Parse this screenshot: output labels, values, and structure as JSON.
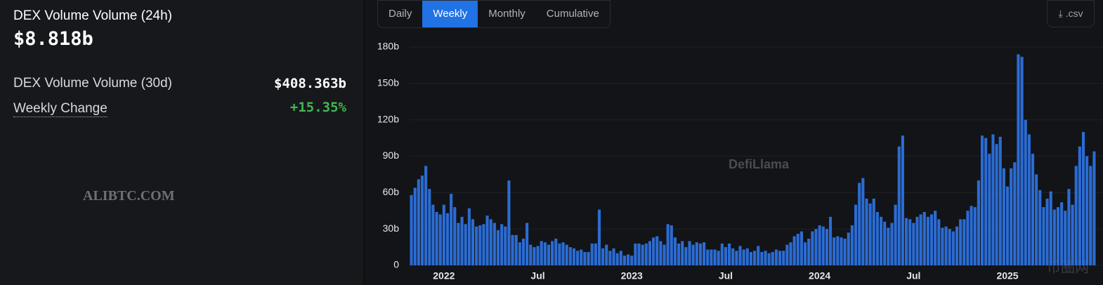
{
  "panel": {
    "title": "DEX Volume Volume (24h)",
    "value": "$8.818b",
    "rows": [
      {
        "label": "DEX Volume Volume (30d)",
        "value": "$408.363b"
      },
      {
        "label": "Weekly Change",
        "value": "+15.35%"
      }
    ],
    "watermark": "ALIBTC.COM"
  },
  "tabs": [
    "Daily",
    "Weekly",
    "Monthly",
    "Cumulative"
  ],
  "selected_tab": "Weekly",
  "csv_button": ".csv",
  "corner_logo": "币圈网",
  "chart_data": {
    "type": "bar",
    "watermark": "DefiLlama",
    "color": "#2b6cd4",
    "grid": true,
    "ylim": [
      0,
      180
    ],
    "yticks": [
      0,
      {
        "value": 30,
        "label": "30b"
      },
      {
        "value": 60,
        "label": "60b"
      },
      {
        "value": 90,
        "label": "90b"
      },
      {
        "value": 120,
        "label": "120b"
      },
      {
        "value": 150,
        "label": "150b"
      },
      {
        "value": 180,
        "label": "180b"
      }
    ],
    "categories": [
      null,
      null,
      null,
      null,
      null,
      null,
      null,
      null,
      null,
      "2022",
      null,
      null,
      null,
      null,
      null,
      null,
      null,
      null,
      null,
      null,
      null,
      null,
      null,
      null,
      null,
      null,
      null,
      null,
      null,
      null,
      null,
      null,
      null,
      null,
      null,
      "Jul",
      null,
      null,
      null,
      null,
      null,
      null,
      null,
      null,
      null,
      null,
      null,
      null,
      null,
      null,
      null,
      null,
      null,
      null,
      null,
      null,
      null,
      null,
      null,
      null,
      null,
      "2023",
      null,
      null,
      null,
      null,
      null,
      null,
      null,
      null,
      null,
      null,
      null,
      null,
      null,
      null,
      null,
      null,
      null,
      null,
      null,
      null,
      null,
      null,
      null,
      null,
      null,
      "Jul",
      null,
      null,
      null,
      null,
      null,
      null,
      null,
      null,
      null,
      null,
      null,
      null,
      null,
      null,
      null,
      null,
      null,
      null,
      null,
      null,
      null,
      null,
      null,
      null,
      null,
      "2024",
      null,
      null,
      null,
      null,
      null,
      null,
      null,
      null,
      null,
      null,
      null,
      null,
      null,
      null,
      null,
      null,
      null,
      null,
      null,
      null,
      null,
      null,
      null,
      null,
      null,
      "Jul",
      null,
      null,
      null,
      null,
      null,
      null,
      null,
      null,
      null,
      null,
      null,
      null,
      null,
      null,
      null,
      null,
      null,
      null,
      null,
      null,
      null,
      null,
      null,
      null,
      null,
      "2025",
      null,
      null,
      null,
      null,
      null,
      null,
      null,
      null,
      null,
      null,
      null,
      null,
      null,
      null,
      null,
      null,
      null,
      null,
      null,
      null,
      null,
      null,
      null,
      null
    ],
    "values": [
      58,
      64,
      71,
      74,
      82,
      63,
      50,
      44,
      42,
      50,
      43,
      59,
      48,
      35,
      40,
      34,
      47,
      38,
      32,
      33,
      34,
      41,
      38,
      35,
      29,
      34,
      32,
      70,
      25,
      25,
      19,
      22,
      35,
      17,
      15,
      16,
      20,
      19,
      17,
      20,
      22,
      18,
      19,
      17,
      15,
      14,
      12,
      13,
      11,
      11,
      18,
      18,
      46,
      14,
      17,
      12,
      14,
      10,
      12,
      8,
      9,
      8,
      18,
      18,
      17,
      18,
      20,
      23,
      24,
      20,
      17,
      34,
      33,
      23,
      18,
      20,
      15,
      20,
      17,
      19,
      18,
      19,
      13,
      13,
      13,
      12,
      18,
      15,
      18,
      14,
      12,
      16,
      13,
      14,
      11,
      12,
      16,
      11,
      12,
      10,
      11,
      13,
      12,
      12,
      17,
      19,
      24,
      26,
      28,
      19,
      22,
      28,
      30,
      33,
      32,
      30,
      40,
      23,
      24,
      23,
      22,
      27,
      33,
      50,
      68,
      72,
      55,
      51,
      55,
      44,
      40,
      36,
      31,
      35,
      50,
      98,
      107,
      39,
      38,
      35,
      40,
      42,
      44,
      40,
      42,
      45,
      38,
      31,
      32,
      30,
      28,
      32,
      38,
      38,
      45,
      49,
      48,
      70,
      107,
      105,
      92,
      108,
      100,
      106,
      80,
      65,
      80,
      85,
      174,
      172,
      120,
      108,
      92,
      75,
      62,
      48,
      55,
      61,
      46,
      48,
      52,
      45,
      63,
      50,
      82,
      98,
      110,
      90,
      82,
      94
    ]
  }
}
